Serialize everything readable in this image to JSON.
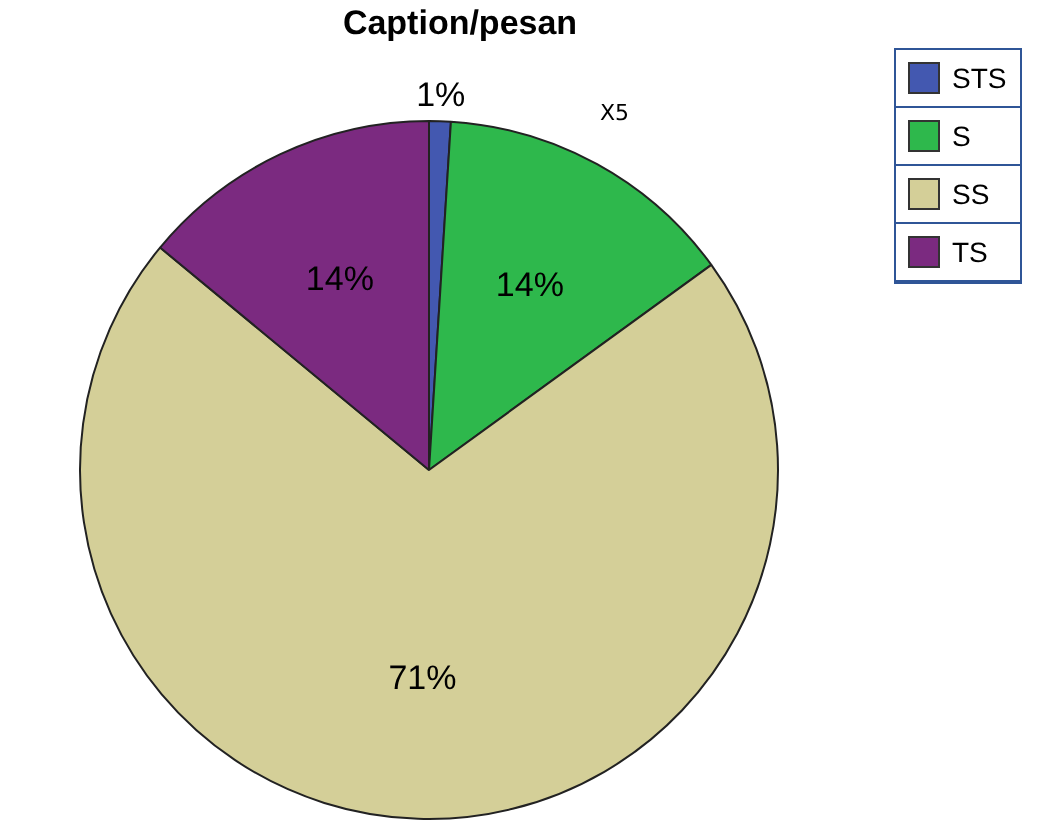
{
  "chart_data": {
    "type": "pie",
    "title": "Caption/pesan",
    "categories": [
      "STS",
      "S",
      "SS",
      "TS"
    ],
    "values": [
      1,
      14,
      71,
      14
    ],
    "colors": [
      "#4358b0",
      "#2eb84c",
      "#d4cf98",
      "#7b2a80"
    ],
    "value_labels": [
      "1%",
      "14%",
      "71%",
      "14%"
    ],
    "annotations": [
      "X5"
    ],
    "legend": "top right"
  }
}
